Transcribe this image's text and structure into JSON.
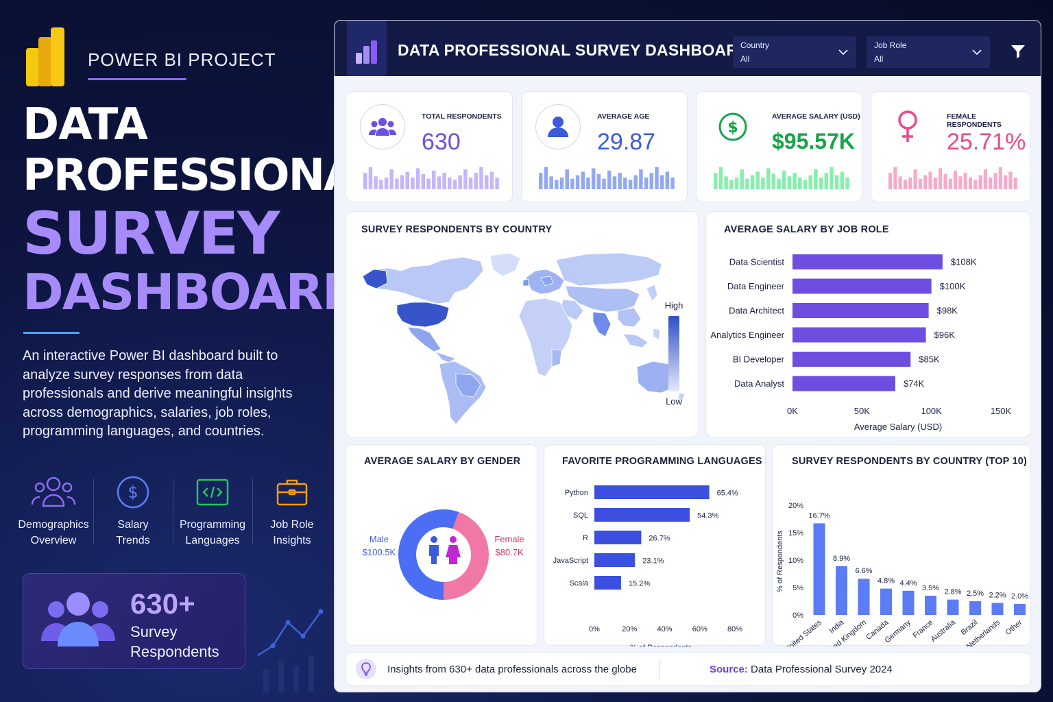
{
  "left": {
    "project_label": "POWER BI PROJECT",
    "hero": {
      "line1": "DATA",
      "line2": "PROFESSIONAL",
      "line3": "SURVEY",
      "line4": "DASHBOARD"
    },
    "description": "An interactive Power BI dashboard built to analyze survey responses from data professionals and derive meaningful insights across demographics, salaries, job roles, programming languages, and countries.",
    "features": [
      {
        "icon": "people-icon",
        "line1": "Demographics",
        "line2": "Overview",
        "color": "#8b6cf0"
      },
      {
        "icon": "dollar-icon",
        "line1": "Salary",
        "line2": "Trends",
        "color": "#5b7cf5"
      },
      {
        "icon": "code-icon",
        "line1": "Programming",
        "line2": "Languages",
        "color": "#22c55e"
      },
      {
        "icon": "briefcase-icon",
        "line1": "Job Role",
        "line2": "Insights",
        "color": "#f59e0b"
      }
    ],
    "respondents_card": {
      "value": "630+",
      "label_line1": "Survey",
      "label_line2": "Respondents"
    }
  },
  "dashboard": {
    "title": "DATA PROFESSIONAL SURVEY DASHBOARD",
    "slicers": [
      {
        "label": "Country",
        "value": "All"
      },
      {
        "label": "Job Role",
        "value": "All"
      }
    ],
    "kpis": [
      {
        "icon": "people-icon",
        "label": "TOTAL RESPONDENTS",
        "value": "630",
        "color": "#6d4ee0",
        "spark_color": "#c4b5fd"
      },
      {
        "icon": "person-icon",
        "label": "AVERAGE AGE",
        "value": "29.87",
        "color": "#3b5bdb",
        "spark_color": "#93a8f5"
      },
      {
        "icon": "dollar-icon",
        "label": "AVERAGE SALARY (USD)",
        "value": "$95.57K",
        "color": "#16a34a",
        "spark_color": "#86efac"
      },
      {
        "icon": "female-icon",
        "label": "FEMALE RESPONDENTS",
        "value": "25.71%",
        "color": "#e84a8a",
        "spark_color": "#f9a8c8"
      }
    ],
    "map": {
      "title": "SURVEY RESPONDENTS BY COUNTRY",
      "legend_high": "High",
      "legend_low": "Low"
    },
    "salary_by_role": {
      "title": "AVERAGE SALARY BY JOB ROLE",
      "xlabel": "Average Salary (USD)",
      "ticks": [
        "0K",
        "50K",
        "100K",
        "150K"
      ]
    },
    "gender": {
      "title": "AVERAGE SALARY BY GENDER",
      "male_label": "Male",
      "male_value": "$100.5K",
      "female_label": "Female",
      "female_value": "$80.7K"
    },
    "languages": {
      "title": "FAVORITE PROGRAMMING LANGUAGES",
      "xlabel": "% of Respondents",
      "ticks": [
        "0%",
        "20%",
        "40%",
        "60%",
        "80%"
      ]
    },
    "top10": {
      "title": "SURVEY RESPONDENTS BY COUNTRY (TOP 10)",
      "ylabel": "% of Respondents",
      "ticks": [
        "0%",
        "5%",
        "10%",
        "15%",
        "20%"
      ]
    },
    "footer": {
      "insight": "Insights from 630+ data professionals across the globe",
      "source_label": "Source:",
      "source_value": "Data Professional Survey 2024"
    }
  },
  "chart_data": [
    {
      "type": "bar",
      "orientation": "horizontal",
      "title": "AVERAGE SALARY BY JOB ROLE",
      "xlabel": "Average Salary (USD)",
      "xlim": [
        0,
        150
      ],
      "categories": [
        "Data Scientist",
        "Data Engineer",
        "Data Architect",
        "Analytics Engineer",
        "BI Developer",
        "Data Analyst"
      ],
      "values": [
        108,
        100,
        98,
        96,
        85,
        74
      ],
      "labels": [
        "$108K",
        "$100K",
        "$98K",
        "$96K",
        "$85K",
        "$74K"
      ],
      "color": "#6d4ee0"
    },
    {
      "type": "pie",
      "title": "AVERAGE SALARY BY GENDER",
      "categories": [
        "Male",
        "Female"
      ],
      "values": [
        100.5,
        80.7
      ],
      "colors": [
        "#4c6ef5",
        "#f078a6"
      ]
    },
    {
      "type": "bar",
      "orientation": "horizontal",
      "title": "FAVORITE PROGRAMMING LANGUAGES",
      "xlabel": "% of Respondents",
      "xlim": [
        0,
        80
      ],
      "categories": [
        "Python",
        "SQL",
        "R",
        "JavaScript",
        "Scala"
      ],
      "values": [
        65.4,
        54.3,
        26.7,
        23.1,
        15.2
      ],
      "labels": [
        "65.4%",
        "54.3%",
        "26.7%",
        "23.1%",
        "15.2%"
      ],
      "color": "#3b4fe0"
    },
    {
      "type": "bar",
      "title": "SURVEY RESPONDENTS BY COUNTRY (TOP 10)",
      "ylabel": "% of Respondents",
      "ylim": [
        0,
        20
      ],
      "categories": [
        "United States",
        "India",
        "United Kingdom",
        "Canada",
        "Germany",
        "France",
        "Australia",
        "Brazil",
        "Netherlands",
        "Other"
      ],
      "values": [
        16.7,
        8.9,
        6.6,
        4.8,
        4.4,
        3.5,
        2.8,
        2.5,
        2.2,
        2.0
      ],
      "labels": [
        "16.7%",
        "8.9%",
        "6.6%",
        "4.8%",
        "4.4%",
        "3.5%",
        "2.8%",
        "2.5%",
        "2.2%",
        "2.0%"
      ],
      "color": "#5b7cf5"
    }
  ]
}
